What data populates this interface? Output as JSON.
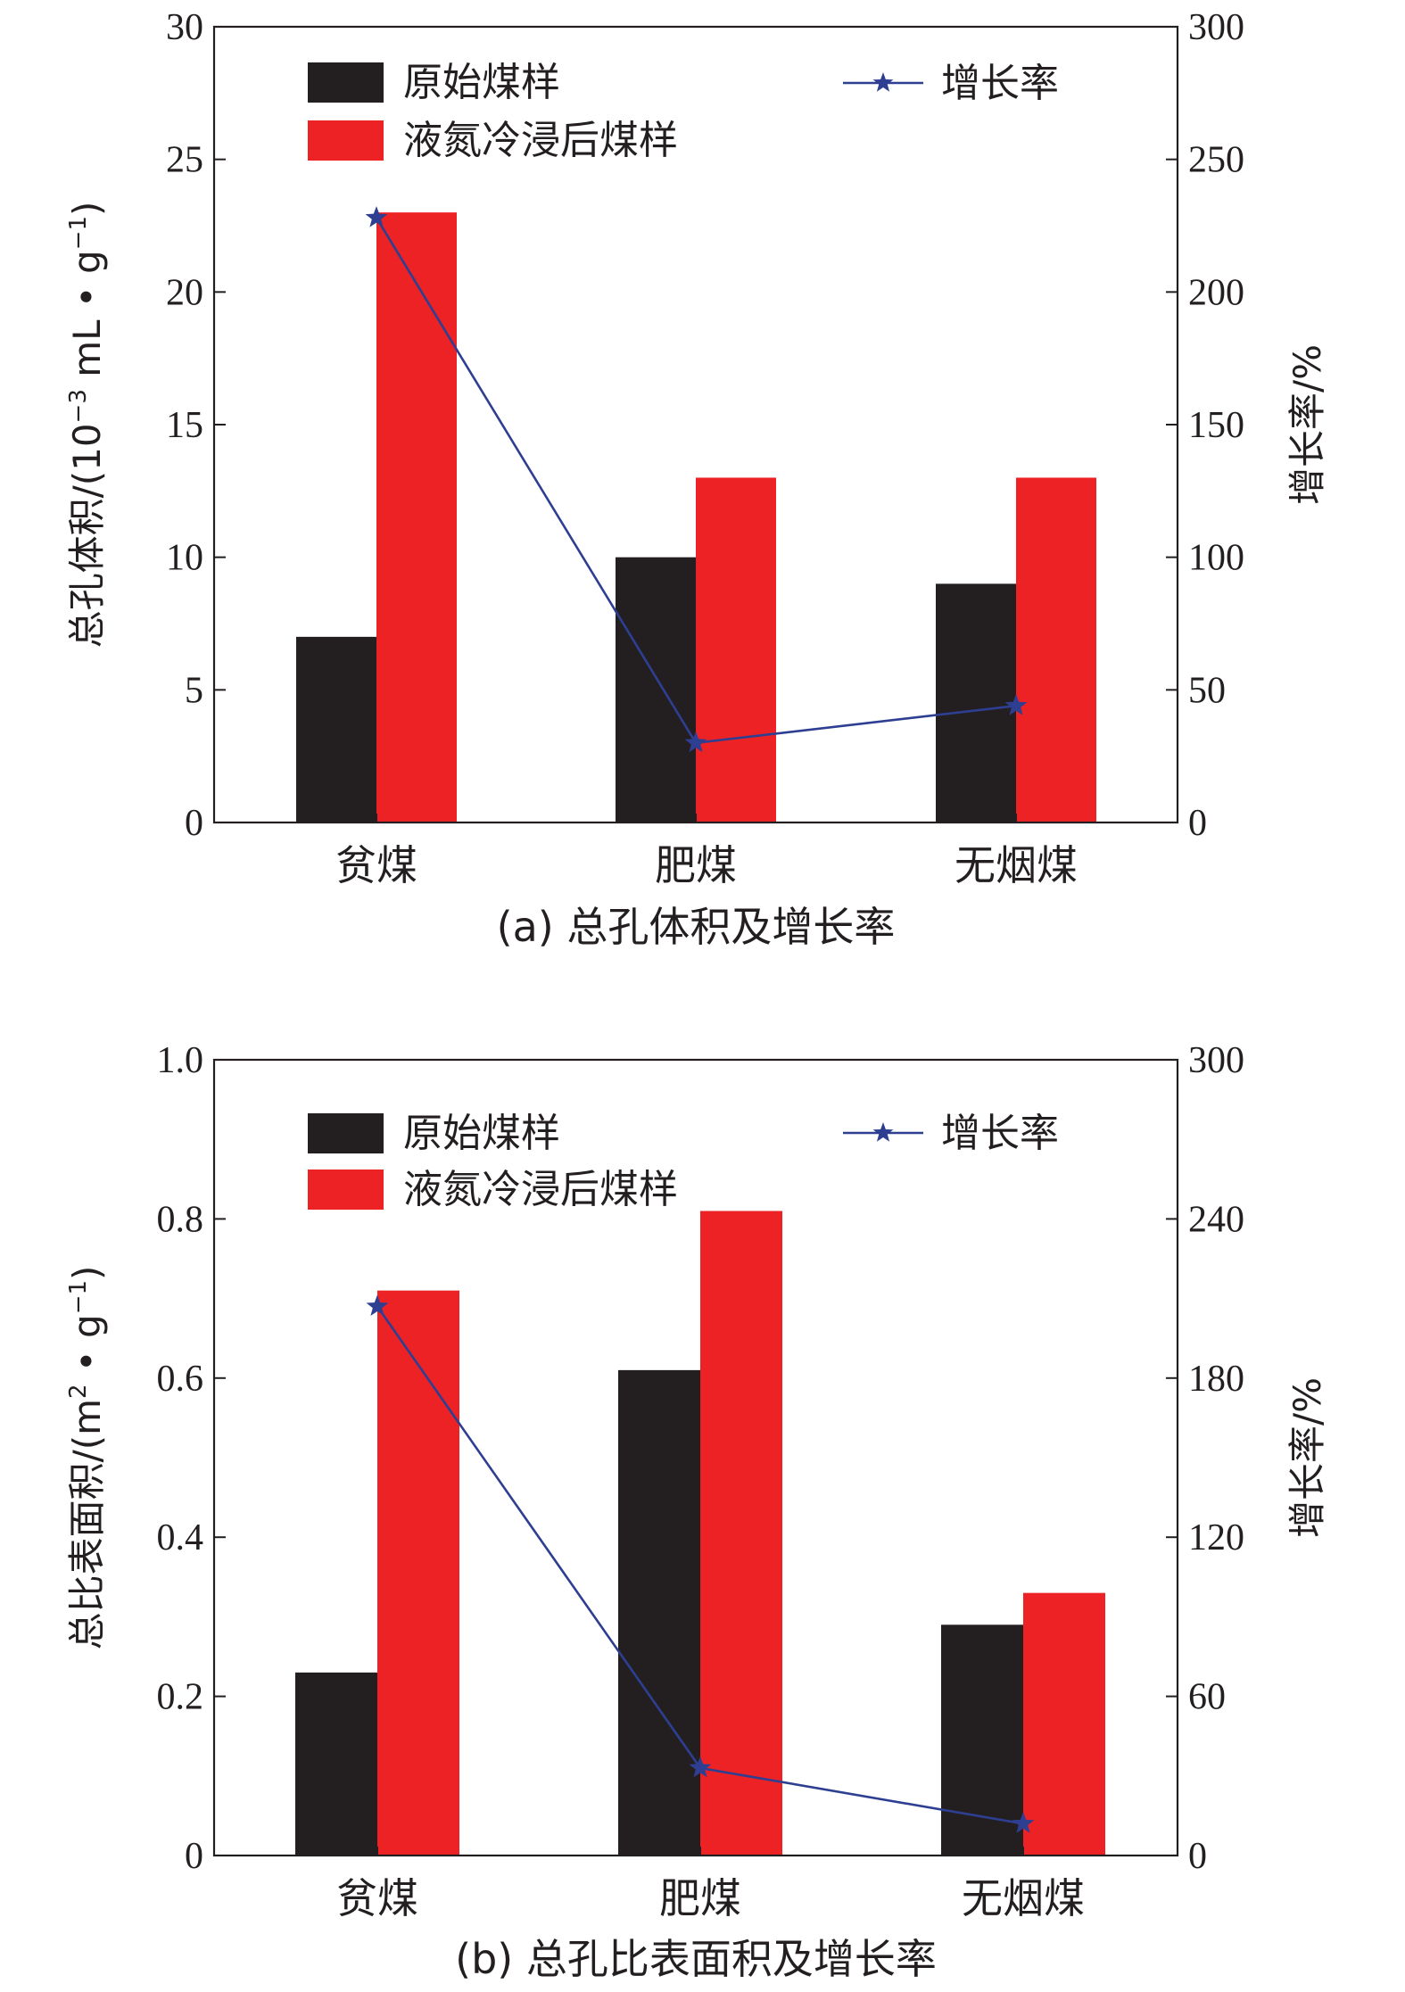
{
  "colors": {
    "original": "#231f20",
    "treated": "#ed2224",
    "growth": "#2e3f92",
    "axis": "#231f20"
  },
  "chart_data": [
    {
      "type": "bar",
      "caption": "(a) 总孔体积及增长率",
      "categories": [
        "贫煤",
        "肥煤",
        "无烟煤"
      ],
      "ylabel": "总孔体积/(10⁻³ mL • g⁻¹)",
      "ylabel_parts": {
        "pre": "总孔体积/(10",
        "sup1": "−3",
        "mid": " mL • g",
        "sup2": "−1",
        "post": ")"
      },
      "ylim": [
        0,
        30
      ],
      "yticks": [
        "0",
        "5",
        "10",
        "15",
        "20",
        "25",
        "30"
      ],
      "y2label": "增长率/%",
      "y2lim": [
        0,
        300
      ],
      "y2ticks": [
        "0",
        "50",
        "100",
        "150",
        "200",
        "250",
        "300"
      ],
      "series": [
        {
          "name": "原始煤样",
          "type": "bar",
          "axis": "left",
          "values": [
            7,
            10,
            9
          ]
        },
        {
          "name": "液氮冷浸后煤样",
          "type": "bar",
          "axis": "left",
          "values": [
            23,
            13,
            13
          ]
        },
        {
          "name": "增长率",
          "type": "line",
          "axis": "right",
          "marker": "star",
          "values": [
            228,
            30,
            44
          ]
        }
      ],
      "legend": "top",
      "grid": false
    },
    {
      "type": "bar",
      "caption": "(b) 总孔比表面积及增长率",
      "categories": [
        "贫煤",
        "肥煤",
        "无烟煤"
      ],
      "ylabel": "总比表面积/(m² • g⁻¹)",
      "ylabel_parts": {
        "pre": "总比表面积/(m",
        "sup1": "2",
        "mid": " • g",
        "sup2": "−1",
        "post": ")"
      },
      "ylim": [
        0,
        1.0
      ],
      "yticks": [
        "0",
        "0.2",
        "0.4",
        "0.6",
        "0.8",
        "1.0"
      ],
      "y2label": "增长率/%",
      "y2lim": [
        0,
        300
      ],
      "y2ticks": [
        "0",
        "60",
        "120",
        "180",
        "240",
        "300"
      ],
      "series": [
        {
          "name": "原始煤样",
          "type": "bar",
          "axis": "left",
          "values": [
            0.23,
            0.61,
            0.29
          ]
        },
        {
          "name": "液氮冷浸后煤样",
          "type": "bar",
          "axis": "left",
          "values": [
            0.71,
            0.81,
            0.33
          ]
        },
        {
          "name": "增长率",
          "type": "line",
          "axis": "right",
          "marker": "star",
          "values": [
            207,
            33,
            12
          ]
        }
      ],
      "legend": "top",
      "grid": false
    }
  ]
}
